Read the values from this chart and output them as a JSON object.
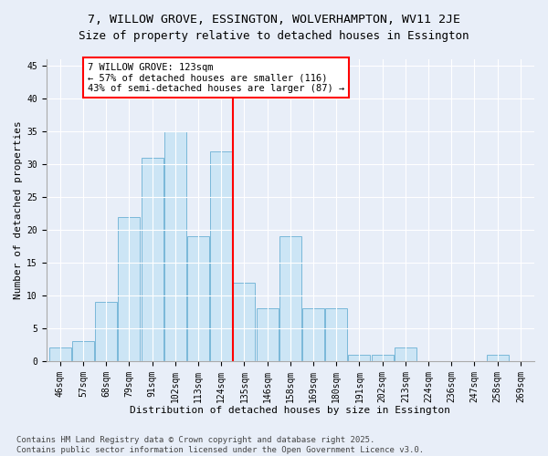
{
  "title": "7, WILLOW GROVE, ESSINGTON, WOLVERHAMPTON, WV11 2JE",
  "subtitle": "Size of property relative to detached houses in Essington",
  "xlabel": "Distribution of detached houses by size in Essington",
  "ylabel": "Number of detached properties",
  "bar_labels": [
    "46sqm",
    "57sqm",
    "68sqm",
    "79sqm",
    "91sqm",
    "102sqm",
    "113sqm",
    "124sqm",
    "135sqm",
    "146sqm",
    "158sqm",
    "169sqm",
    "180sqm",
    "191sqm",
    "202sqm",
    "213sqm",
    "224sqm",
    "236sqm",
    "247sqm",
    "258sqm",
    "269sqm"
  ],
  "bar_values": [
    2,
    3,
    9,
    22,
    31,
    35,
    19,
    32,
    12,
    8,
    19,
    8,
    8,
    1,
    1,
    2,
    0,
    0,
    0,
    1,
    0
  ],
  "bar_color": "#cce5f5",
  "bar_edge_color": "#7ab8d9",
  "vline_x": 7.5,
  "vline_color": "red",
  "annotation_text": "7 WILLOW GROVE: 123sqm\n← 57% of detached houses are smaller (116)\n43% of semi-detached houses are larger (87) →",
  "annotation_box_color": "white",
  "annotation_box_edge_color": "red",
  "ylim": [
    0,
    46
  ],
  "yticks": [
    0,
    5,
    10,
    15,
    20,
    25,
    30,
    35,
    40,
    45
  ],
  "bg_color": "#e8eef8",
  "footer": "Contains HM Land Registry data © Crown copyright and database right 2025.\nContains public sector information licensed under the Open Government Licence v3.0.",
  "title_fontsize": 9.5,
  "xlabel_fontsize": 8,
  "ylabel_fontsize": 8,
  "tick_fontsize": 7,
  "annotation_fontsize": 7.5,
  "footer_fontsize": 6.5
}
